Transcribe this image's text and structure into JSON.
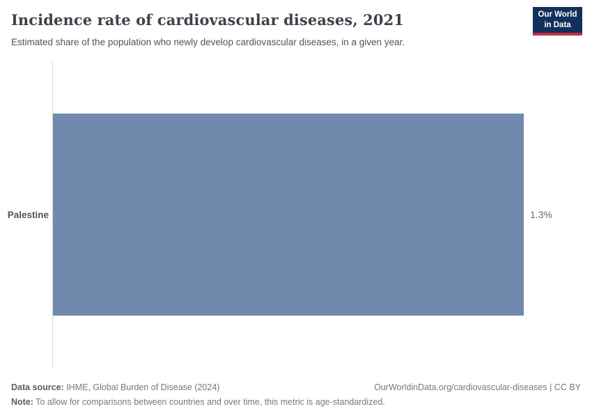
{
  "header": {
    "title": "Incidence rate of cardiovascular diseases, 2021",
    "subtitle": "Estimated share of the population who newly develop cardiovascular diseases, in a given year.",
    "logo": {
      "line1": "Our World",
      "line2": "in Data"
    }
  },
  "chart_data": {
    "type": "bar",
    "orientation": "horizontal",
    "title": "Incidence rate of cardiovascular diseases, 2021",
    "subtitle": "Estimated share of the population who newly develop cardiovascular diseases, in a given year.",
    "categories": [
      "Palestine"
    ],
    "values": [
      1.3
    ],
    "value_labels": [
      "1.3%"
    ],
    "unit": "%",
    "xlabel": "",
    "ylabel": "",
    "xlim": [
      0,
      1.3
    ],
    "grid": false,
    "legend": "none"
  },
  "footer": {
    "data_source_label": "Data source:",
    "data_source_value": " IHME, Global Burden of Disease (2024)",
    "link": "OurWorldinData.org/cardiovascular-diseases | CC BY",
    "note_label": "Note:",
    "note_value": " To allow for comparisons between countries and over time, this metric is age-standardized."
  },
  "colors": {
    "bar": "#7189ad",
    "axis_line": "#d9dadb",
    "logo_bg": "#12305b",
    "logo_stripe": "#c32e40",
    "title_text": "#3d434b"
  }
}
